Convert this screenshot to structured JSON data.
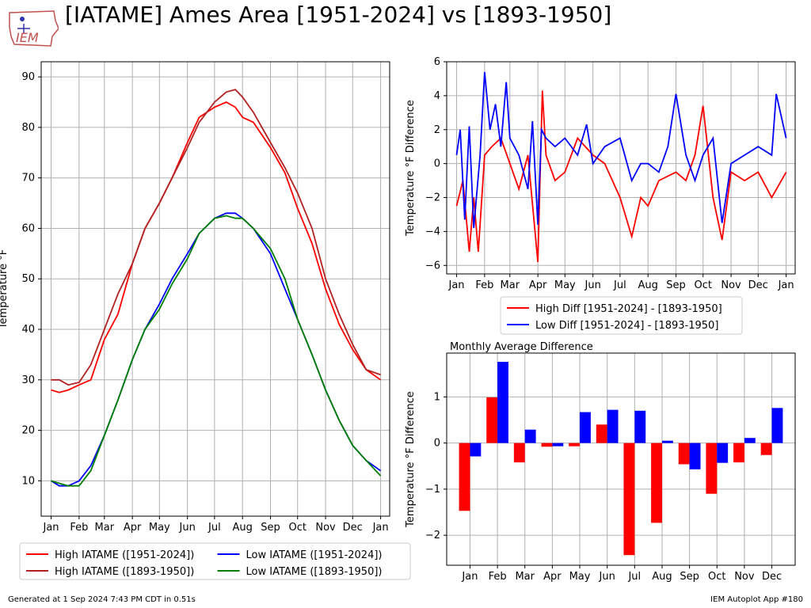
{
  "title": "[IATAME] Ames Area [1951-2024] vs [1893-1950]",
  "logo_text": "IEM",
  "footer": {
    "left": "Generated at 1 Sep 2024 7:43 PM CDT in 0.51s",
    "right": "IEM Autoplot App #180"
  },
  "colors": {
    "high_recent": "#ff0000",
    "high_old": "#b22222",
    "low_recent": "#0000ff",
    "low_old": "#008000",
    "grid": "#b0b0b0",
    "logo": "#c0504d"
  },
  "chart_data": [
    {
      "id": "climatology",
      "type": "line",
      "title": "",
      "xlabel": "",
      "ylabel": "Temperature $^\\circ$F",
      "xlim": [
        -10,
        376
      ],
      "ylim": [
        3,
        93
      ],
      "xticks": [
        1,
        32,
        60,
        91,
        121,
        152,
        182,
        213,
        244,
        274,
        305,
        335,
        366
      ],
      "xtick_labels": [
        "Jan",
        "Feb",
        "Mar",
        "Apr",
        "May",
        "Jun",
        "Jul",
        "Aug",
        "Sep",
        "Oct",
        "Nov",
        "Dec",
        "Jan"
      ],
      "yticks": [
        10,
        20,
        30,
        40,
        50,
        60,
        70,
        80,
        90
      ],
      "grid": true,
      "legend_position": "below",
      "legend": [
        "High IATAME ([1951-2024])",
        "High IATAME ([1893-1950])",
        "Low IATAME ([1951-2024])",
        "Low IATAME ([1893-1950])"
      ],
      "series": [
        {
          "name": "High IATAME ([1951-2024])",
          "color": "#ff0000",
          "x": [
            1,
            10,
            20,
            32,
            45,
            60,
            75,
            91,
            105,
            121,
            135,
            152,
            165,
            182,
            195,
            205,
            213,
            225,
            244,
            260,
            274,
            290,
            305,
            320,
            335,
            350,
            366
          ],
          "y": [
            28,
            27.5,
            28,
            29,
            30,
            38,
            43,
            53,
            60,
            65,
            70,
            77,
            82,
            84,
            85,
            84,
            82,
            81,
            76,
            71,
            64,
            57,
            48,
            41,
            36,
            32,
            30
          ]
        },
        {
          "name": "High IATAME ([1893-1950])",
          "color": "#b22222",
          "x": [
            1,
            10,
            20,
            32,
            45,
            60,
            75,
            91,
            105,
            121,
            135,
            152,
            165,
            182,
            195,
            205,
            213,
            225,
            244,
            260,
            274,
            290,
            305,
            320,
            335,
            350,
            366
          ],
          "y": [
            30,
            30,
            29,
            29.5,
            33,
            40,
            47,
            53,
            60,
            65,
            70,
            76,
            81,
            85,
            87,
            87.5,
            86,
            83,
            77,
            72,
            67,
            60,
            50,
            43,
            37,
            32,
            31
          ]
        },
        {
          "name": "Low IATAME ([1951-2024])",
          "color": "#0000ff",
          "x": [
            1,
            10,
            20,
            32,
            45,
            60,
            75,
            91,
            105,
            121,
            135,
            152,
            165,
            182,
            195,
            205,
            213,
            225,
            244,
            260,
            274,
            290,
            305,
            320,
            335,
            350,
            366
          ],
          "y": [
            10,
            9,
            9,
            10,
            13,
            19,
            26,
            34,
            40,
            45,
            50,
            55,
            59,
            62,
            63,
            63,
            62,
            60,
            55,
            48,
            42,
            35,
            28,
            22,
            17,
            14,
            12
          ]
        },
        {
          "name": "Low IATAME ([1893-1950])",
          "color": "#008000",
          "x": [
            1,
            10,
            20,
            32,
            45,
            60,
            75,
            91,
            105,
            121,
            135,
            152,
            165,
            182,
            195,
            205,
            213,
            225,
            244,
            260,
            274,
            290,
            305,
            320,
            335,
            350,
            366
          ],
          "y": [
            10,
            9.5,
            9,
            9,
            12,
            19,
            26,
            34,
            40,
            44,
            49,
            54,
            59,
            62,
            62.5,
            62,
            62,
            60,
            56,
            50,
            42,
            35,
            28,
            22,
            17,
            14,
            11
          ]
        }
      ]
    },
    {
      "id": "daily_difference",
      "type": "line",
      "title": "",
      "xlabel": "",
      "ylabel": "Temperature $^\\circ$F Difference",
      "xlim": [
        -10,
        376
      ],
      "ylim": [
        -6.5,
        6
      ],
      "xticks": [
        1,
        32,
        60,
        91,
        121,
        152,
        182,
        213,
        244,
        274,
        305,
        335,
        366
      ],
      "xtick_labels": [
        "Jan",
        "Feb",
        "Mar",
        "Apr",
        "May",
        "Jun",
        "Jul",
        "Aug",
        "Sep",
        "Oct",
        "Nov",
        "Dec",
        "Jan"
      ],
      "yticks": [
        -6,
        -4,
        -2,
        0,
        2,
        4,
        6
      ],
      "grid": true,
      "legend_position": "below",
      "legend": [
        "High Diff [1951-2024] - [1893-1950]",
        "Low Diff [1951-2024] - [1893-1950]"
      ],
      "series": [
        {
          "name": "High Diff [1951-2024] - [1893-1950]",
          "color": "#ff0000",
          "x": [
            1,
            8,
            15,
            20,
            25,
            32,
            40,
            50,
            60,
            70,
            80,
            91,
            96,
            100,
            110,
            121,
            135,
            152,
            165,
            182,
            195,
            205,
            213,
            225,
            244,
            255,
            265,
            274,
            285,
            295,
            305,
            320,
            335,
            350,
            366
          ],
          "y": [
            -2.5,
            -1.0,
            -5.2,
            -2.0,
            -5.2,
            0.5,
            1.0,
            1.5,
            0.0,
            -1.5,
            0.5,
            -5.8,
            4.3,
            0.5,
            -1.0,
            -0.5,
            1.5,
            0.5,
            0.0,
            -2.0,
            -4.3,
            -2.0,
            -2.5,
            -1.0,
            -0.5,
            -1.0,
            0.5,
            3.4,
            -2.0,
            -4.5,
            -0.5,
            -1.0,
            -0.5,
            -2.0,
            -0.5
          ]
        },
        {
          "name": "Low Diff [1951-2024] - [1893-1950]",
          "color": "#0000ff",
          "x": [
            1,
            5,
            10,
            15,
            20,
            27,
            32,
            38,
            44,
            50,
            56,
            60,
            70,
            80,
            85,
            91,
            95,
            100,
            110,
            121,
            135,
            145,
            152,
            165,
            182,
            195,
            205,
            213,
            225,
            235,
            244,
            255,
            265,
            274,
            285,
            295,
            305,
            320,
            335,
            350,
            355,
            366
          ],
          "y": [
            0.5,
            2.0,
            -3.3,
            2.2,
            -3.8,
            0.5,
            5.4,
            2.0,
            3.5,
            1.0,
            4.8,
            1.5,
            0.5,
            -1.5,
            2.5,
            -3.6,
            2.0,
            1.5,
            1.0,
            1.5,
            0.5,
            2.3,
            0.0,
            1.0,
            1.5,
            -1.0,
            0.0,
            0.0,
            -0.5,
            1.0,
            4.1,
            0.5,
            -1.0,
            0.5,
            1.5,
            -3.5,
            0.0,
            0.5,
            1.0,
            0.5,
            4.1,
            1.5
          ]
        }
      ]
    },
    {
      "id": "monthly_difference",
      "type": "bar",
      "title": "Monthly Average Difference",
      "xlabel": "",
      "ylabel": "Temperature $^\\circ$F Difference",
      "ylim": [
        -2.65,
        1.95
      ],
      "yticks": [
        -2,
        -1,
        0,
        1
      ],
      "grid": true,
      "categories": [
        "Jan",
        "Feb",
        "Mar",
        "Apr",
        "May",
        "Jun",
        "Jul",
        "Aug",
        "Sep",
        "Oct",
        "Nov",
        "Dec"
      ],
      "series": [
        {
          "name": "High",
          "color": "#ff0000",
          "values": [
            -1.47,
            0.99,
            -0.42,
            -0.08,
            -0.07,
            0.4,
            -2.43,
            -1.73,
            -0.46,
            -1.1,
            -0.42,
            -0.26
          ]
        },
        {
          "name": "Low",
          "color": "#0000ff",
          "values": [
            -0.29,
            1.76,
            0.29,
            -0.07,
            0.67,
            0.72,
            0.7,
            0.05,
            -0.57,
            -0.43,
            0.11,
            0.76
          ]
        }
      ]
    }
  ]
}
